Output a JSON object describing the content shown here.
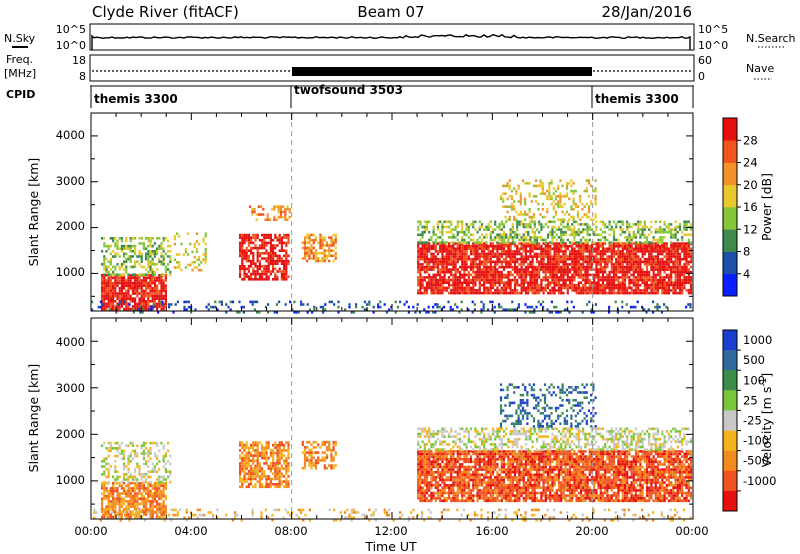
{
  "header": {
    "station": "Clyde River (fitACF)",
    "beam": "Beam 07",
    "date": "28/Jan/2016"
  },
  "noise_panel": {
    "left_label": "N.Sky",
    "right_label": "N.Search",
    "left_ticks": [
      "10^5",
      "10^0"
    ],
    "right_ticks": [
      "10^5",
      "10^0"
    ]
  },
  "freq_panel": {
    "left_label_1": "Freq.",
    "left_label_2": "[MHz]",
    "right_label": "Nave",
    "left_ticks": [
      "18",
      "8"
    ],
    "right_ticks": [
      "60",
      "0"
    ]
  },
  "cpid": {
    "label": "CPID",
    "segments": [
      {
        "name": "themis 3300",
        "start": 0,
        "end": 8
      },
      {
        "name": "twofsound 3503",
        "start": 8,
        "end": 20
      },
      {
        "name": "themis 3300",
        "start": 20,
        "end": 24
      }
    ]
  },
  "chart_data": [
    {
      "type": "heatmap",
      "title": "",
      "ylabel": "Slant Range [km]",
      "xlabel": "Time UT",
      "xlim": [
        0,
        24
      ],
      "ylim": [
        180,
        4500
      ],
      "x_ticks": [
        "00:00",
        "04:00",
        "08:00",
        "12:00",
        "16:00",
        "20:00",
        "00:00"
      ],
      "y_ticks": [
        1000,
        2000,
        3000,
        4000
      ],
      "colorbar": {
        "label": "Power [dB]",
        "ticks": [
          "4",
          "8",
          "12",
          "16",
          "20",
          "24",
          "28"
        ],
        "bands": [
          "#0a1eff",
          "#1d4ea8",
          "#3f8a4a",
          "#86c63a",
          "#e8c82a",
          "#f4922a",
          "#f2541e",
          "#e61010"
        ]
      },
      "regions": [
        {
          "t0": 0.4,
          "t1": 3.0,
          "r0": 250,
          "r1": 1000,
          "level": 7,
          "density": 0.85
        },
        {
          "t0": 0.4,
          "t1": 3.2,
          "r0": 1000,
          "r1": 1850,
          "level": 3,
          "density": 0.45
        },
        {
          "t0": 3.3,
          "t1": 4.6,
          "r0": 1100,
          "r1": 1900,
          "level": 4,
          "density": 0.25
        },
        {
          "t0": 5.9,
          "t1": 7.9,
          "r0": 900,
          "r1": 1900,
          "level": 7,
          "density": 0.75
        },
        {
          "t0": 6.3,
          "t1": 7.9,
          "r0": 2200,
          "r1": 2500,
          "level": 5,
          "density": 0.45
        },
        {
          "t0": 8.4,
          "t1": 9.8,
          "r0": 1300,
          "r1": 1900,
          "level": 5,
          "density": 0.6
        },
        {
          "t0": 13.0,
          "t1": 23.9,
          "r0": 600,
          "r1": 1700,
          "level": 7,
          "density": 0.85
        },
        {
          "t0": 13.0,
          "t1": 23.9,
          "r0": 1700,
          "r1": 2200,
          "level": 3,
          "density": 0.5
        },
        {
          "t0": 16.3,
          "t1": 20.1,
          "r0": 2200,
          "r1": 3100,
          "level": 4,
          "density": 0.3
        },
        {
          "t0": 0.0,
          "t1": 24.0,
          "r0": 180,
          "r1": 420,
          "level": 1,
          "density": 0.2
        }
      ]
    },
    {
      "type": "heatmap",
      "title": "",
      "ylabel": "Slant Range [km]",
      "xlabel": "Time UT",
      "xlim": [
        0,
        24
      ],
      "ylim": [
        180,
        4500
      ],
      "x_ticks": [
        "00:00",
        "04:00",
        "08:00",
        "12:00",
        "16:00",
        "20:00",
        "00:00"
      ],
      "y_ticks": [
        1000,
        2000,
        3000,
        4000
      ],
      "colorbar": {
        "label": "Velocity [m s^-1]",
        "ticks": [
          "1000",
          "500",
          "100",
          "25",
          "-25",
          "-100",
          "-500",
          "-1000"
        ],
        "bands": [
          "#1a3fd0",
          "#2e6a9c",
          "#3d8d4a",
          "#7ac63a",
          "#c8c8c8",
          "#f4b41e",
          "#f38a1e",
          "#f2501e",
          "#e61010"
        ]
      },
      "regions": [
        {
          "t0": 0.4,
          "t1": 3.0,
          "r0": 250,
          "r1": 1000,
          "level": 6,
          "density": 0.8
        },
        {
          "t0": 0.4,
          "t1": 3.2,
          "r0": 1000,
          "r1": 1850,
          "level": 4,
          "density": 0.4
        },
        {
          "t0": 5.9,
          "t1": 7.9,
          "r0": 900,
          "r1": 1900,
          "level": 6,
          "density": 0.75
        },
        {
          "t0": 8.4,
          "t1": 9.8,
          "r0": 1300,
          "r1": 1900,
          "level": 6,
          "density": 0.55
        },
        {
          "t0": 13.0,
          "t1": 23.9,
          "r0": 600,
          "r1": 1700,
          "level": 7,
          "density": 0.85
        },
        {
          "t0": 13.0,
          "t1": 23.9,
          "r0": 1700,
          "r1": 2200,
          "level": 4,
          "density": 0.5
        },
        {
          "t0": 16.3,
          "t1": 20.1,
          "r0": 2200,
          "r1": 3100,
          "level": 1,
          "density": 0.3
        },
        {
          "t0": 0.0,
          "t1": 24.0,
          "r0": 180,
          "r1": 420,
          "level": 5,
          "density": 0.2
        }
      ]
    }
  ]
}
